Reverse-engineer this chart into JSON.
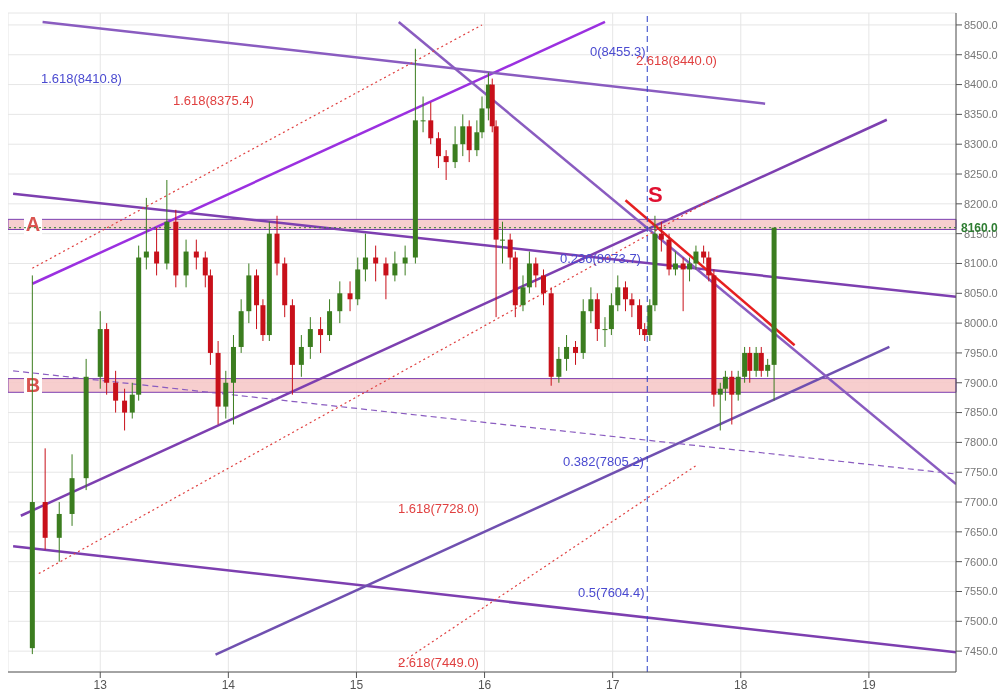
{
  "chart_data": {
    "type": "candlestick",
    "x": [
      12.47,
      12.57,
      12.68,
      12.78,
      12.89,
      13.0,
      13.05,
      13.12,
      13.19,
      13.25,
      13.3,
      13.36,
      13.44,
      13.52,
      13.59,
      13.67,
      13.75,
      13.82,
      13.86,
      13.92,
      13.98,
      14.04,
      14.1,
      14.16,
      14.22,
      14.27,
      14.32,
      14.38,
      14.44,
      14.5,
      14.57,
      14.64,
      14.72,
      14.79,
      14.87,
      14.95,
      15.01,
      15.07,
      15.15,
      15.23,
      15.3,
      15.38,
      15.46,
      15.52,
      15.58,
      15.64,
      15.7,
      15.77,
      15.83,
      15.88,
      15.94,
      15.98,
      16.03,
      16.06,
      16.09,
      16.14,
      16.2,
      16.24,
      16.3,
      16.35,
      16.4,
      16.46,
      16.52,
      16.58,
      16.64,
      16.71,
      16.77,
      16.83,
      16.88,
      16.94,
      16.99,
      17.04,
      17.1,
      17.15,
      17.21,
      17.25,
      17.29,
      17.33,
      17.38,
      17.44,
      17.49,
      17.55,
      17.6,
      17.65,
      17.71,
      17.75,
      17.79,
      17.84,
      17.88,
      17.93,
      17.98,
      18.03,
      18.07,
      18.12,
      18.16,
      18.21,
      18.26
    ],
    "ohlc": [
      [
        7455,
        8080,
        7445,
        7700
      ],
      [
        7700,
        7790,
        7620,
        7640
      ],
      [
        7640,
        7700,
        7600,
        7680
      ],
      [
        7680,
        7780,
        7660,
        7740
      ],
      [
        7740,
        7940,
        7720,
        7910
      ],
      [
        7910,
        8020,
        7890,
        7990
      ],
      [
        7990,
        8000,
        7880,
        7900
      ],
      [
        7900,
        7920,
        7850,
        7870
      ],
      [
        7870,
        7890,
        7820,
        7850
      ],
      [
        7850,
        7900,
        7840,
        7880
      ],
      [
        7880,
        8130,
        7870,
        8110
      ],
      [
        8110,
        8210,
        8090,
        8120
      ],
      [
        8120,
        8160,
        8080,
        8100
      ],
      [
        8100,
        8240,
        8090,
        8170
      ],
      [
        8170,
        8190,
        8060,
        8080
      ],
      [
        8080,
        8140,
        8060,
        8120
      ],
      [
        8120,
        8140,
        8090,
        8110
      ],
      [
        8110,
        8120,
        8060,
        8080
      ],
      [
        8080,
        8090,
        7930,
        7950
      ],
      [
        7950,
        7970,
        7830,
        7860
      ],
      [
        7860,
        7920,
        7840,
        7900
      ],
      [
        7900,
        7980,
        7830,
        7960
      ],
      [
        7960,
        8040,
        7950,
        8020
      ],
      [
        8020,
        8100,
        8000,
        8080
      ],
      [
        8080,
        8090,
        7990,
        8030
      ],
      [
        8030,
        8040,
        7970,
        7980
      ],
      [
        7980,
        8170,
        7970,
        8150
      ],
      [
        8150,
        8180,
        8080,
        8100
      ],
      [
        8100,
        8110,
        8010,
        8030
      ],
      [
        8030,
        8040,
        7880,
        7930
      ],
      [
        7930,
        7980,
        7910,
        7960
      ],
      [
        7960,
        8010,
        7940,
        7990
      ],
      [
        7990,
        8010,
        7950,
        7980
      ],
      [
        7980,
        8040,
        7970,
        8020
      ],
      [
        8020,
        8070,
        8000,
        8050
      ],
      [
        8050,
        8070,
        8020,
        8040
      ],
      [
        8040,
        8110,
        8030,
        8090
      ],
      [
        8090,
        8150,
        8070,
        8110
      ],
      [
        8110,
        8130,
        8070,
        8100
      ],
      [
        8100,
        8110,
        8040,
        8080
      ],
      [
        8080,
        8120,
        8070,
        8100
      ],
      [
        8100,
        8130,
        8080,
        8110
      ],
      [
        8110,
        8460,
        8100,
        8340
      ],
      [
        8340,
        8380,
        8320,
        8340
      ],
      [
        8340,
        8370,
        8300,
        8310
      ],
      [
        8310,
        8320,
        8260,
        8280
      ],
      [
        8280,
        8290,
        8240,
        8270
      ],
      [
        8270,
        8330,
        8260,
        8300
      ],
      [
        8300,
        8350,
        8280,
        8330
      ],
      [
        8330,
        8340,
        8270,
        8290
      ],
      [
        8290,
        8340,
        8280,
        8320
      ],
      [
        8320,
        8380,
        8310,
        8360
      ],
      [
        8360,
        8420,
        8340,
        8400
      ],
      [
        8400,
        8410,
        8320,
        8330
      ],
      [
        8330,
        8340,
        8010,
        8140
      ],
      [
        8140,
        8170,
        8100,
        8140
      ],
      [
        8140,
        8150,
        8090,
        8110
      ],
      [
        8110,
        8120,
        8010,
        8030
      ],
      [
        8030,
        8080,
        8020,
        8060
      ],
      [
        8060,
        8120,
        8050,
        8100
      ],
      [
        8100,
        8110,
        8060,
        8080
      ],
      [
        8080,
        8090,
        8030,
        8050
      ],
      [
        8050,
        8060,
        7895,
        7910
      ],
      [
        7910,
        7960,
        7900,
        7940
      ],
      [
        7940,
        7980,
        7920,
        7960
      ],
      [
        7960,
        7970,
        7930,
        7950
      ],
      [
        7950,
        8040,
        7940,
        8020
      ],
      [
        8020,
        8060,
        8000,
        8040
      ],
      [
        8040,
        8050,
        7970,
        7990
      ],
      [
        7990,
        8010,
        7960,
        7990
      ],
      [
        7990,
        8050,
        7980,
        8030
      ],
      [
        8030,
        8080,
        8020,
        8060
      ],
      [
        8060,
        8070,
        8020,
        8040
      ],
      [
        8040,
        8050,
        8010,
        8030
      ],
      [
        8030,
        8040,
        7980,
        7990
      ],
      [
        7990,
        8000,
        7970,
        7980
      ],
      [
        7980,
        8040,
        7970,
        8030
      ],
      [
        8030,
        8180,
        8020,
        8150
      ],
      [
        8150,
        8170,
        8120,
        8140
      ],
      [
        8140,
        8150,
        8080,
        8090
      ],
      [
        8090,
        8120,
        8080,
        8100
      ],
      [
        8100,
        8110,
        8020,
        8090
      ],
      [
        8090,
        8110,
        8070,
        8100
      ],
      [
        8100,
        8130,
        8090,
        8120
      ],
      [
        8120,
        8130,
        8100,
        8110
      ],
      [
        8110,
        8120,
        8070,
        8080
      ],
      [
        8080,
        8090,
        7860,
        7880
      ],
      [
        7880,
        7900,
        7820,
        7890
      ],
      [
        7890,
        7920,
        7870,
        7910
      ],
      [
        7910,
        7920,
        7830,
        7880
      ],
      [
        7880,
        7920,
        7870,
        7910
      ],
      [
        7910,
        7960,
        7900,
        7950
      ],
      [
        7950,
        7960,
        7900,
        7920
      ],
      [
        7920,
        7960,
        7910,
        7950
      ],
      [
        7950,
        7960,
        7910,
        7920
      ],
      [
        7920,
        7940,
        7910,
        7930
      ],
      [
        7930,
        8160,
        7870,
        8160
      ]
    ],
    "series": [
      {
        "type": "line",
        "color": "#7d3fb0",
        "x": [
          12.32,
          19.68
        ],
        "values": [
          8217,
          8044
        ]
      },
      {
        "type": "line",
        "color": "#7d3fb0",
        "x": [
          12.32,
          19.68
        ],
        "values": [
          7626,
          7448
        ]
      },
      {
        "type": "line",
        "color": "#7d3fb0",
        "x": [
          12.38,
          19.14
        ],
        "values": [
          7677,
          8341
        ]
      },
      {
        "type": "line",
        "color": "#9b30e0",
        "x": [
          12.47,
          16.94
        ],
        "values": [
          8066,
          8505
        ]
      },
      {
        "type": "line",
        "color": "#7050b0",
        "x": [
          13.9,
          19.16
        ],
        "values": [
          7444,
          7960
        ]
      },
      {
        "type": "line",
        "color": "#8a5cc0",
        "x": [
          12.55,
          18.19
        ],
        "values": [
          8505,
          8368
        ]
      },
      {
        "type": "line",
        "color": "#8a5cc0",
        "line_style": "dashed",
        "x": [
          12.32,
          19.68
        ],
        "values": [
          7920,
          7747
        ]
      },
      {
        "type": "line",
        "color": "#8a5cc0",
        "x": [
          15.33,
          19.68
        ],
        "values": [
          8505,
          7730
        ]
      },
      {
        "type": "line",
        "color": "#e62020",
        "x": [
          17.1,
          18.42
        ],
        "values": [
          8206,
          7963
        ]
      },
      {
        "type": "line",
        "color": "#e04040",
        "line_style": "dotted",
        "x": [
          12.47,
          15.98
        ],
        "values": [
          8092,
          8500
        ]
      },
      {
        "type": "line",
        "color": "#e04040",
        "line_style": "dotted",
        "x": [
          12.52,
          17.83
        ],
        "values": [
          7580,
          8214
        ]
      },
      {
        "type": "line",
        "color": "#e04040",
        "line_style": "dotted",
        "x": [
          15.33,
          17.65
        ],
        "values": [
          7428,
          7761
        ]
      }
    ],
    "bands": [
      {
        "axis": "y",
        "from": 8157,
        "to": 8174,
        "label": "A",
        "color": "#f6c9c9"
      },
      {
        "axis": "y",
        "from": 7884,
        "to": 7907,
        "label": "B",
        "color": "#f6c9c9"
      }
    ],
    "ref_lines": [
      {
        "axis": "x",
        "value": 17.27,
        "color": "#2b3fc8",
        "line_style": "dashed"
      },
      {
        "axis": "y",
        "value": 8160,
        "label": "8160.0",
        "color": "#2e7d32",
        "line_style": "dotted"
      }
    ],
    "annotations": [
      "S",
      "1.618(8410.8)",
      "1.618(8375.4)",
      "0(8455.3)",
      "2.618(8440.0)",
      "0.236(8073.7)",
      "0.382(7805.2)",
      "1.618(7728.0)",
      "0.5(7604.4)",
      "2.618(7449.0)"
    ],
    "xlim": [
      12.28,
      19.68
    ],
    "xticks": [
      13,
      14,
      15,
      16,
      17,
      18,
      19
    ],
    "ylim": [
      7415,
      8520
    ],
    "yticks": [
      {
        "value": 7450,
        "label": "7450.0"
      },
      {
        "value": 7500,
        "label": "7500.0"
      },
      {
        "value": 7550,
        "label": "7550.0"
      },
      {
        "value": 7600,
        "label": "7600.0"
      },
      {
        "value": 7650,
        "label": "7650.0"
      },
      {
        "value": 7700,
        "label": "7700.0"
      },
      {
        "value": 7750,
        "label": "7750.0"
      },
      {
        "value": 7800,
        "label": "7800.0"
      },
      {
        "value": 7850,
        "label": "7850.0"
      },
      {
        "value": 7900,
        "label": "7900.0"
      },
      {
        "value": 7950,
        "label": "7950.0"
      },
      {
        "value": 8000,
        "label": "8000.0"
      },
      {
        "value": 8050,
        "label": "8050.0"
      },
      {
        "value": 8100,
        "label": "8100.0"
      },
      {
        "value": 8150,
        "label": "8150.0"
      },
      {
        "value": 8200,
        "label": "8200.0"
      },
      {
        "value": 8250,
        "label": "8250.0"
      },
      {
        "value": 8300,
        "label": "8300.0"
      },
      {
        "value": 8350,
        "label": "8350.0"
      },
      {
        "value": 8400,
        "label": "8400.0"
      },
      {
        "value": 8450,
        "label": "8450.0"
      },
      {
        "value": 8500,
        "label": "8500.0"
      }
    ],
    "grid": true
  }
}
